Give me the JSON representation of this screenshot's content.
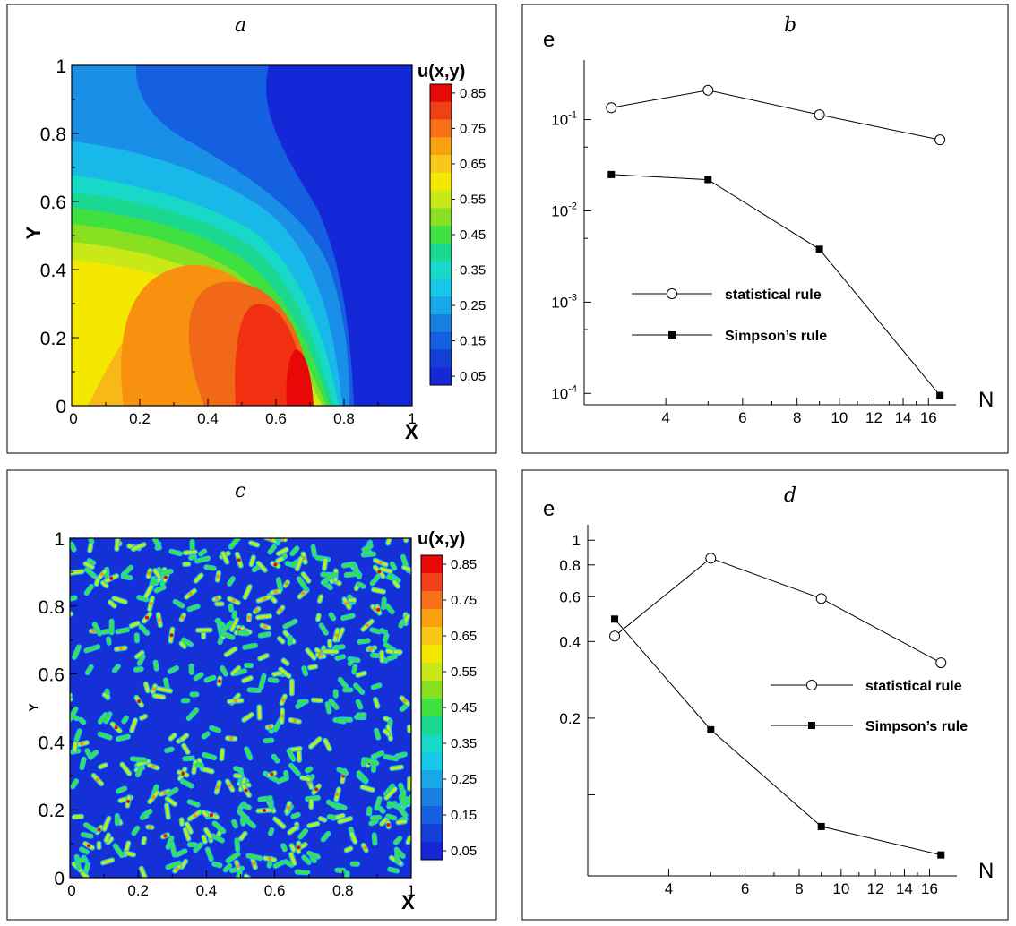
{
  "chart_data": [
    {
      "panel": "a",
      "type": "heatmap",
      "title": "a",
      "xlabel": "X",
      "ylabel": "Y",
      "xlim": [
        0,
        1
      ],
      "ylim": [
        0,
        1
      ],
      "xticks": [
        "0",
        "0.2",
        "0.4",
        "0.6",
        "0.8",
        "1"
      ],
      "yticks": [
        "0",
        "0.2",
        "0.4",
        "0.6",
        "0.8",
        "1"
      ],
      "colorbar": {
        "title": "u(x,y)",
        "levels": [
          "0.85",
          "0.75",
          "0.65",
          "0.55",
          "0.45",
          "0.35",
          "0.25",
          "0.15",
          "0.05"
        ]
      },
      "field": "smooth peak near x≈0.65, y≈0.05, max ≈0.87"
    },
    {
      "panel": "b",
      "type": "line",
      "title": "b",
      "xlabel": "N",
      "ylabel": "e",
      "xscale": "log",
      "yscale": "log",
      "xticks": [
        "4",
        "6",
        "8",
        "10",
        "12",
        "14",
        "16"
      ],
      "yticks": [
        {
          "base": "10",
          "exp": "-1"
        },
        {
          "base": "10",
          "exp": "-2"
        },
        {
          "base": "10",
          "exp": "-3"
        },
        {
          "base": "10",
          "exp": "-4"
        }
      ],
      "series": [
        {
          "name": "statistical rule",
          "marker": "open-circle",
          "x": [
            3,
            5,
            9,
            17
          ],
          "y": [
            0.135,
            0.21,
            0.113,
            0.06
          ]
        },
        {
          "name": "Simpson’s rule",
          "marker": "filled-square",
          "x": [
            3,
            5,
            9,
            17
          ],
          "y": [
            0.025,
            0.022,
            0.0038,
            9.5e-05
          ]
        }
      ]
    },
    {
      "panel": "c",
      "type": "heatmap",
      "title": "c",
      "xlabel": "X",
      "ylabel": "Y",
      "xlim": [
        0,
        1
      ],
      "ylim": [
        0,
        1
      ],
      "xticks": [
        "0",
        "0.2",
        "0.4",
        "0.6",
        "0.8",
        "1"
      ],
      "yticks": [
        "0",
        "0.2",
        "0.4",
        "0.6",
        "0.8",
        "1"
      ],
      "colorbar": {
        "title": "u(x,y)",
        "levels": [
          "0.85",
          "0.75",
          "0.65",
          "0.55",
          "0.45",
          "0.35",
          "0.25",
          "0.15",
          "0.05"
        ]
      },
      "field": "random field of many small blobs on a low background"
    },
    {
      "panel": "d",
      "type": "line",
      "title": "d",
      "xlabel": "N",
      "ylabel": "e",
      "xscale": "log",
      "yscale": "log",
      "xticks": [
        "4",
        "6",
        "8",
        "10",
        "12",
        "14",
        "16"
      ],
      "yticks": [
        "1",
        "0.8",
        "0.6",
        "0.4",
        "0.2"
      ],
      "series": [
        {
          "name": "statistical rule",
          "marker": "open-circle",
          "x": [
            3,
            5,
            9,
            17
          ],
          "y": [
            0.42,
            0.85,
            0.59,
            0.33
          ]
        },
        {
          "name": "Simpson’s rule",
          "marker": "filled-square",
          "x": [
            3,
            5,
            9,
            17
          ],
          "y": [
            0.49,
            0.18,
            0.075,
            0.058
          ]
        }
      ]
    }
  ]
}
